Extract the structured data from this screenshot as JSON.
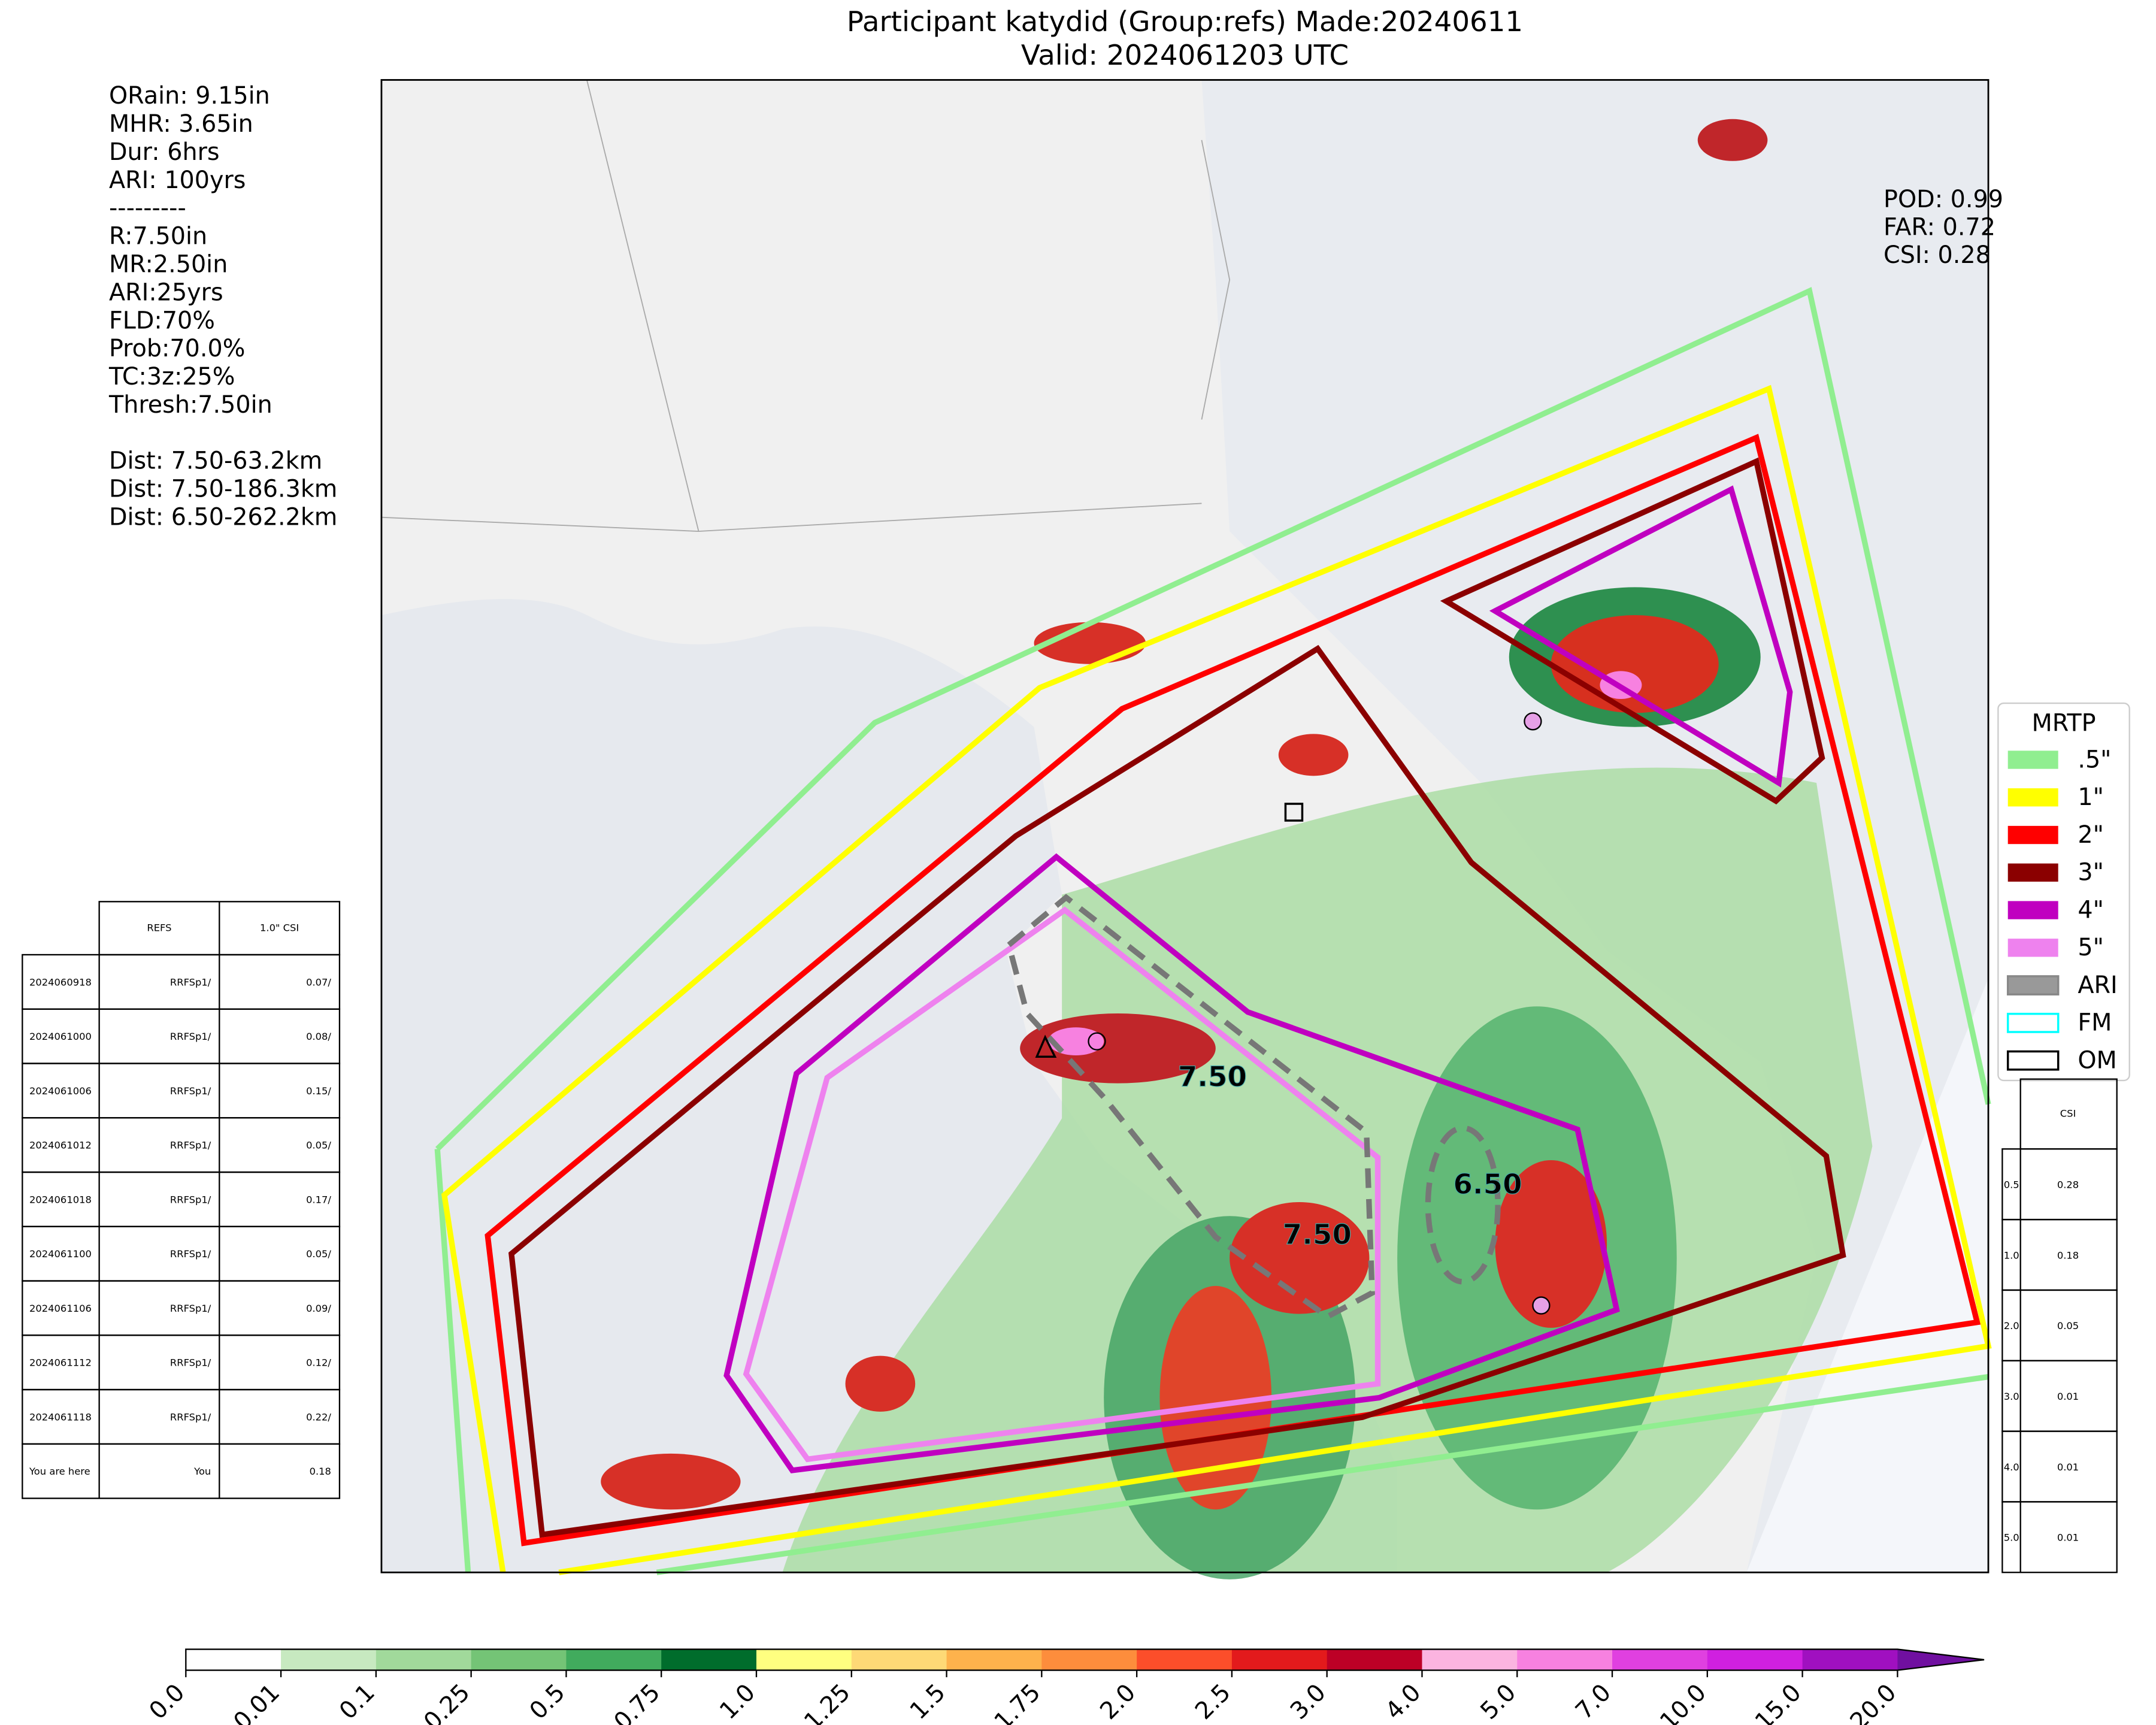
{
  "header": {
    "title": "Participant katydid (Group:refs) Made:20240611",
    "subtitle": "Valid: 2024061203 UTC"
  },
  "left_stats": [
    "ORain: 9.15in",
    "MHR: 3.65in",
    "Dur: 6hrs",
    "ARI: 100yrs",
    "---------",
    "R:7.50in",
    "MR:2.50in",
    "ARI:25yrs",
    "FLD:70%",
    "Prob:70.0%",
    "TC:3z:25%",
    "Thresh:7.50in",
    "",
    "Dist: 7.50-63.2km",
    "Dist: 7.50-186.3km",
    "Dist: 6.50-262.2km"
  ],
  "right_stats": [
    "POD: 0.99",
    "FAR: 0.72",
    "CSI: 0.28"
  ],
  "map_labels": [
    {
      "text": "7.50"
    },
    {
      "text": "7.50"
    },
    {
      "text": "6.50"
    }
  ],
  "legend": {
    "title": "MRTP",
    "entries": [
      {
        "label": ".5\"",
        "color": "#90ee90"
      },
      {
        "label": "1\"",
        "color": "#ffff00"
      },
      {
        "label": "2\"",
        "color": "#ff0000"
      },
      {
        "label": "3\"",
        "color": "#8b0000"
      },
      {
        "label": "4\"",
        "color": "#c000c0"
      },
      {
        "label": "5\"",
        "color": "#ee82ee"
      },
      {
        "label": "ARI",
        "color": "#888888"
      },
      {
        "label": "FM",
        "color": "#00ffff"
      },
      {
        "label": "OM",
        "color": "#000000"
      }
    ]
  },
  "left_table": {
    "header": [
      "REFS",
      "1.0\" CSI"
    ],
    "rows": [
      [
        "2024060918",
        "RRFSp1/",
        "0.07/"
      ],
      [
        "2024061000",
        "RRFSp1/",
        "0.08/"
      ],
      [
        "2024061006",
        "RRFSp1/",
        "0.15/"
      ],
      [
        "2024061012",
        "RRFSp1/",
        "0.05/"
      ],
      [
        "2024061018",
        "RRFSp1/",
        "0.17/"
      ],
      [
        "2024061100",
        "RRFSp1/",
        "0.05/"
      ],
      [
        "2024061106",
        "RRFSp1/",
        "0.09/"
      ],
      [
        "2024061112",
        "RRFSp1/",
        "0.12/"
      ],
      [
        "2024061118",
        "RRFSp1/",
        "0.22/"
      ],
      [
        "You are here",
        "You",
        "0.18"
      ]
    ]
  },
  "right_table": {
    "header": "CSI",
    "rows": [
      [
        "0.5",
        "0.28"
      ],
      [
        "1.0",
        "0.18"
      ],
      [
        "2.0",
        "0.05"
      ],
      [
        "3.0",
        "0.01"
      ],
      [
        "4.0",
        "0.01"
      ],
      [
        "5.0",
        "0.01"
      ]
    ]
  },
  "colorbar": {
    "labels": [
      "0.0",
      "0.01",
      "0.1",
      "0.25",
      "0.5",
      "0.75",
      "1.0",
      "1.25",
      "1.5",
      "1.75",
      "2.0",
      "2.5",
      "3.0",
      "4.0",
      "5.0",
      "7.0",
      "10.0",
      "15.0",
      "20.0"
    ],
    "colors": [
      "#ffffff",
      "#c7e9c0",
      "#a1d99b",
      "#74c476",
      "#41ab5d",
      "#238b45",
      "#006d2c",
      "#ffff80",
      "#fed976",
      "#feb24c",
      "#fd8d3c",
      "#fc4e2a",
      "#e31a1c",
      "#bd0026",
      "#800026",
      "#fbb4e0",
      "#f781e0",
      "#e040e0",
      "#d020e0",
      "#a010c0",
      "#7010a0"
    ]
  }
}
